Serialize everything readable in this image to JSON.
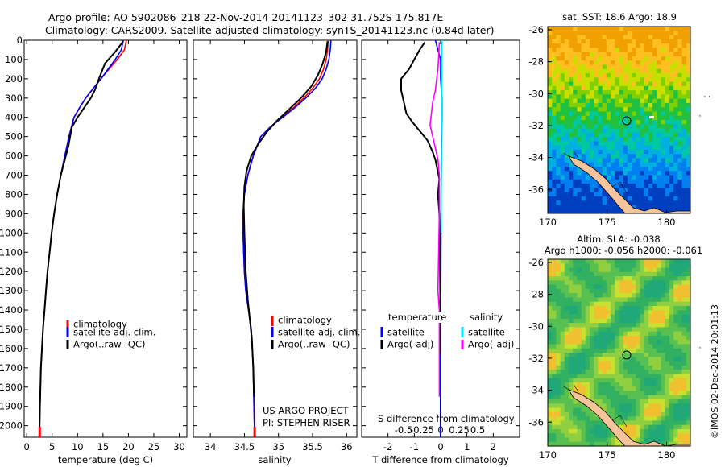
{
  "title": {
    "line1": "Argo profile: AO 5902086_218 22-Nov-2014 20141123_302 31.752S 175.817E",
    "line2": "Climatology: CARS2009. Satellite-adjusted climatology: synTS_20141123.nc (0.84d later)"
  },
  "watermark": "©IMOS 02-Dec-2014 20:01:13",
  "colors": {
    "climatology": "#ff0000",
    "satellite": "#0000ff",
    "argo": "#000000",
    "satellite_sal": "#00e5ff",
    "argo_sal": "#ff00ff",
    "land": "#f5c49a"
  },
  "chart_data": [
    {
      "id": "temperature",
      "type": "line",
      "xlabel": "temperature (deg C)",
      "ylabel": "",
      "xlim": [
        -0.5,
        31.5
      ],
      "ylim": [
        2060,
        0
      ],
      "xticks": [
        0,
        5,
        10,
        15,
        20,
        25,
        30
      ],
      "yticks": [
        0,
        100,
        200,
        300,
        400,
        500,
        600,
        700,
        800,
        900,
        1000,
        1100,
        1200,
        1300,
        1400,
        1500,
        1600,
        1700,
        1800,
        1900,
        2000
      ],
      "legend": [
        "climatology",
        "satellite-adj. clim.",
        "Argo(..raw -QC)"
      ],
      "series": [
        {
          "name": "climatology",
          "color": "#ff0000",
          "x": [
            19.6,
            19.2,
            17.8,
            16.2,
            14.6,
            13.1,
            11.6,
            10.4,
            9.3,
            8.3,
            7.5,
            6.7,
            6.0,
            5.4,
            4.9,
            4.5,
            4.1,
            3.8,
            3.5,
            3.2,
            3.0,
            2.8,
            2.6,
            2.5
          ],
          "y": [
            0,
            50,
            100,
            150,
            200,
            250,
            300,
            350,
            400,
            500,
            600,
            700,
            800,
            900,
            1000,
            1100,
            1200,
            1300,
            1400,
            1500,
            1600,
            1700,
            1900,
            2060
          ]
        },
        {
          "name": "satellite-adj. clim.",
          "color": "#0000ff",
          "x": [
            19.0,
            18.6,
            17.4,
            16.0,
            14.6,
            13.1,
            11.6,
            10.4,
            9.3,
            8.3,
            7.5,
            6.7,
            6.0,
            5.4,
            4.9,
            4.5,
            4.1,
            3.8,
            3.5,
            3.2,
            3.0,
            2.8,
            2.6,
            2.5
          ],
          "y": [
            0,
            50,
            100,
            150,
            200,
            250,
            300,
            350,
            400,
            500,
            600,
            700,
            800,
            900,
            1000,
            1100,
            1200,
            1300,
            1400,
            1500,
            1600,
            1700,
            1900,
            2060
          ]
        },
        {
          "name": "Argo(..raw -QC)",
          "color": "#000000",
          "x": [
            19.0,
            17.4,
            15.4,
            14.2,
            13.4,
            12.6,
            11.3,
            10.0,
            8.9,
            8.2,
            7.5,
            6.7,
            6.0,
            5.4,
            4.9,
            4.5,
            4.1,
            3.8,
            3.5,
            3.2,
            3.0,
            2.8,
            2.6,
            2.5
          ],
          "y": [
            5,
            60,
            120,
            200,
            260,
            300,
            350,
            400,
            450,
            550,
            620,
            700,
            800,
            900,
            1000,
            1100,
            1200,
            1300,
            1400,
            1500,
            1600,
            1700,
            1900,
            2060
          ]
        }
      ]
    },
    {
      "id": "salinity",
      "type": "line",
      "xlabel": "salinity",
      "ylabel": "",
      "xlim": [
        33.75,
        36.15
      ],
      "ylim": [
        2060,
        0
      ],
      "xticks": [
        34,
        34.5,
        35,
        35.5,
        36
      ],
      "legend": [
        "climatology",
        "satellite-adj. clim.",
        "Argo(..raw -QC)"
      ],
      "annotation": [
        "US ARGO PROJECT",
        "PI: STEPHEN RISER"
      ],
      "series": [
        {
          "name": "climatology",
          "color": "#ff0000",
          "x": [
            35.73,
            35.72,
            35.7,
            35.66,
            35.6,
            35.5,
            35.37,
            35.22,
            35.05,
            34.88,
            34.74,
            34.63,
            34.55,
            34.5,
            34.48,
            34.48,
            34.5,
            34.52,
            34.56,
            34.6,
            34.63,
            34.64,
            34.65
          ],
          "y": [
            0,
            50,
            100,
            150,
            200,
            250,
            300,
            350,
            400,
            450,
            500,
            600,
            700,
            800,
            900,
            1000,
            1200,
            1300,
            1400,
            1500,
            1700,
            1900,
            2060
          ]
        },
        {
          "name": "satellite-adj. clim.",
          "color": "#0000ff",
          "x": [
            35.77,
            35.76,
            35.74,
            35.7,
            35.64,
            35.54,
            35.4,
            35.24,
            35.06,
            34.88,
            34.74,
            34.63,
            34.55,
            34.5,
            34.48,
            34.48,
            34.5,
            34.52,
            34.56,
            34.6,
            34.63,
            34.64,
            34.65
          ],
          "y": [
            0,
            50,
            100,
            150,
            200,
            250,
            300,
            350,
            400,
            450,
            500,
            600,
            700,
            800,
            900,
            1000,
            1200,
            1300,
            1400,
            1500,
            1700,
            1900,
            2060
          ]
        },
        {
          "name": "Argo(..raw -QC)",
          "color": "#000000",
          "x": [
            35.72,
            35.7,
            35.65,
            35.58,
            35.48,
            35.33,
            35.15,
            34.97,
            34.82,
            34.7,
            34.6,
            34.53,
            34.5,
            34.49,
            34.5,
            34.52,
            34.55,
            34.58,
            34.61,
            34.63,
            34.64
          ],
          "y": [
            5,
            60,
            120,
            180,
            240,
            300,
            360,
            420,
            480,
            540,
            600,
            680,
            760,
            860,
            1000,
            1200,
            1350,
            1450,
            1550,
            1700,
            1850
          ]
        }
      ]
    },
    {
      "id": "difference",
      "type": "line",
      "xlabel": "T difference from climatology",
      "xlabel_top": "S difference from climatology",
      "xlim": [
        -3,
        3
      ],
      "ylim": [
        2060,
        0
      ],
      "xticks": [
        -2,
        -1,
        0,
        1,
        2
      ],
      "xticks_S": [
        "-0.5",
        "-0.25",
        "0",
        "0.25",
        "0.5"
      ],
      "legend": [
        "temperature",
        "salinity",
        "satellite",
        "satellite",
        "Argo(-adj)",
        "Argo(-adj)"
      ],
      "series": [
        {
          "name": "temperature satellite",
          "color": "#0000ff",
          "x": [
            -0.2,
            -0.1,
            0.0,
            0.0,
            0.05,
            0.05,
            0.03,
            0.02,
            0.01,
            0.0,
            0.0
          ],
          "y": [
            0,
            50,
            100,
            200,
            300,
            400,
            600,
            800,
            1200,
            1600,
            2060
          ]
        },
        {
          "name": "temperature Argo(-adj)",
          "color": "#000000",
          "x": [
            -0.6,
            -0.8,
            -1.0,
            -1.2,
            -1.5,
            -1.5,
            -1.4,
            -1.3,
            -1.1,
            -0.8,
            -0.5,
            -0.3,
            -0.2,
            -0.05,
            -0.1,
            -0.05,
            -0.02,
            0.0,
            0.0
          ],
          "y": [
            10,
            50,
            100,
            150,
            200,
            260,
            320,
            380,
            420,
            470,
            520,
            580,
            620,
            720,
            800,
            900,
            1200,
            1600,
            2060
          ]
        },
        {
          "name": "salinity satellite",
          "color": "#00e5ff",
          "x": [
            0.05,
            0.05,
            0.05,
            0.04,
            0.04,
            0.03,
            0.03,
            0.02,
            0.02
          ],
          "y": [
            0,
            100,
            200,
            300,
            400,
            500,
            600,
            800,
            1000
          ]
        },
        {
          "name": "salinity Argo(-adj)",
          "color": "#ff00ff",
          "x": [
            -0.05,
            -0.06,
            -0.08,
            -0.1,
            -0.15,
            -0.2,
            -0.3,
            -0.35,
            -0.4,
            -0.3,
            -0.2,
            -0.1,
            -0.05,
            -0.05,
            -0.1,
            -0.05,
            -0.05
          ],
          "y": [
            10,
            50,
            100,
            150,
            200,
            260,
            320,
            380,
            440,
            500,
            560,
            620,
            700,
            900,
            1300,
            1400,
            1850
          ]
        }
      ]
    },
    {
      "id": "sst_map",
      "type": "heatmap",
      "title": "sat. SST: 18.6  Argo: 18.9",
      "xlim": [
        170,
        182
      ],
      "ylim": [
        -37.5,
        -25.8
      ],
      "xticks": [
        170,
        175,
        180
      ],
      "yticks": [
        -26,
        -28,
        -30,
        -32,
        -34,
        -36
      ],
      "marker": {
        "lon": 175.817,
        "lat": -31.752
      }
    },
    {
      "id": "sla_map",
      "type": "heatmap",
      "title": "Altim. SLA: -0.038",
      "subtitle": "Argo h1000: -0.056 h2000: -0.061",
      "xlim": [
        170,
        182
      ],
      "ylim": [
        -37.5,
        -25.8
      ],
      "xticks": [
        170,
        175,
        180
      ],
      "yticks": [
        -26,
        -28,
        -30,
        -32,
        -34,
        -36
      ],
      "marker": {
        "lon": 175.817,
        "lat": -31.752
      }
    }
  ]
}
